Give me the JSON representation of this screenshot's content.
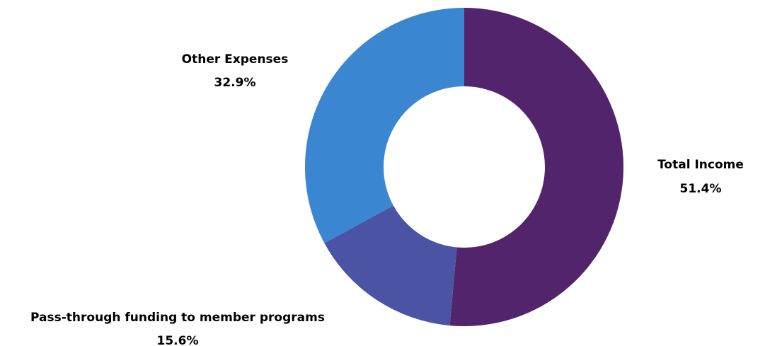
{
  "chart_data": {
    "type": "pie",
    "donut": true,
    "legend": "none",
    "slices": [
      {
        "name": "Total Income",
        "value": 51.4,
        "value_label": "51.4%",
        "color": "#52246b"
      },
      {
        "name": "Pass-through funding to member programs",
        "value": 15.6,
        "value_label": "15.6%",
        "color": "#4a53a4"
      },
      {
        "name": "Other Expenses",
        "value": 32.9,
        "value_label": "32.9%",
        "color": "#3b86d1"
      }
    ]
  }
}
